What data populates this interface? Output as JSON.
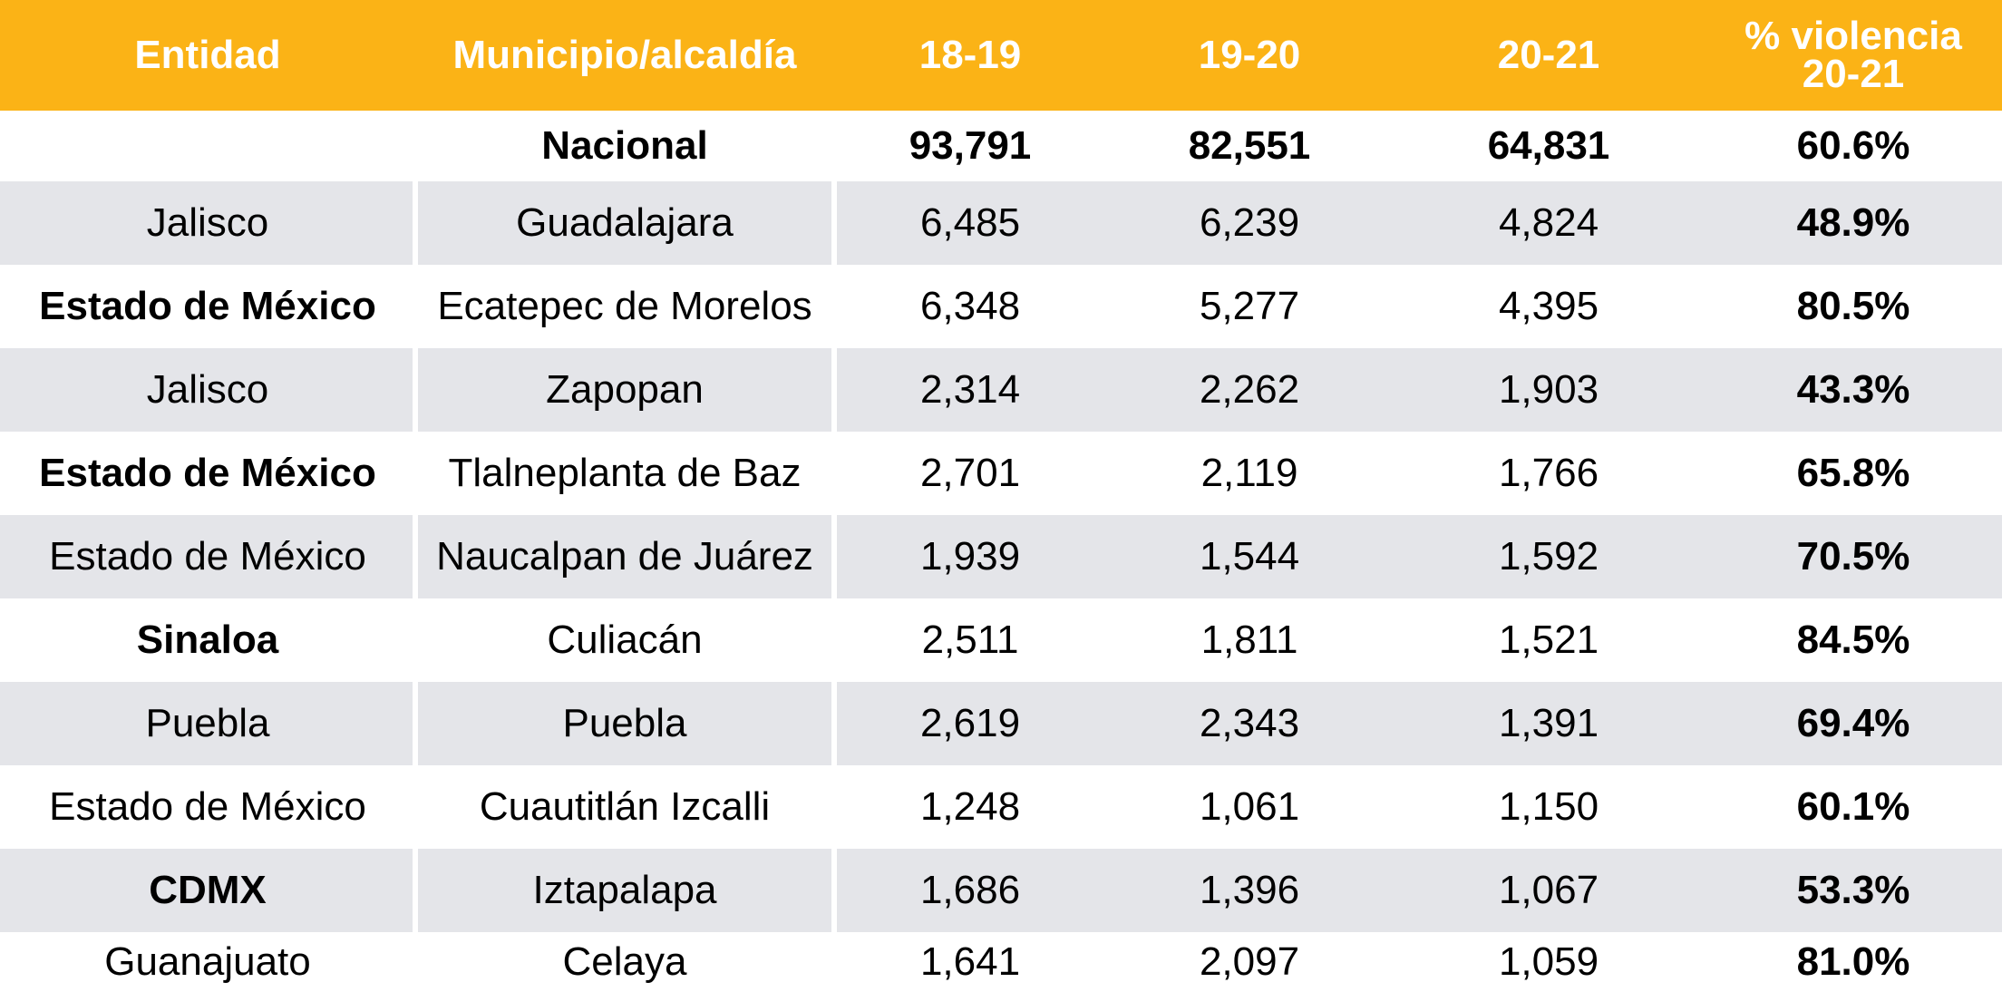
{
  "header": {
    "entidad": "Entidad",
    "municipio": "Municipio/alcaldía",
    "y1": "18-19",
    "y2": "19-20",
    "y3": "20-21",
    "pct_line1": "% violencia",
    "pct_line2": "20-21"
  },
  "colors": {
    "header_bg": "#FBB316",
    "row_shade": "#E4E5E9"
  },
  "rows": [
    {
      "entidad": "",
      "municipio": "Nacional",
      "y1": "93,791",
      "y2": "82,551",
      "y3": "64,831",
      "pct": "60.6%",
      "entidad_bold": false,
      "all_bold": true
    },
    {
      "entidad": "Jalisco",
      "municipio": "Guadalajara",
      "y1": "6,485",
      "y2": "6,239",
      "y3": "4,824",
      "pct": "48.9%",
      "entidad_bold": false
    },
    {
      "entidad": "Estado de México",
      "municipio": "Ecatepec de Morelos",
      "y1": "6,348",
      "y2": "5,277",
      "y3": "4,395",
      "pct": "80.5%",
      "entidad_bold": true
    },
    {
      "entidad": "Jalisco",
      "municipio": "Zapopan",
      "y1": "2,314",
      "y2": "2,262",
      "y3": "1,903",
      "pct": "43.3%",
      "entidad_bold": false
    },
    {
      "entidad": "Estado de México",
      "municipio": "Tlalneplanta de Baz",
      "y1": "2,701",
      "y2": "2,119",
      "y3": "1,766",
      "pct": "65.8%",
      "entidad_bold": true
    },
    {
      "entidad": "Estado de México",
      "municipio": "Naucalpan de Juárez",
      "y1": "1,939",
      "y2": "1,544",
      "y3": "1,592",
      "pct": "70.5%",
      "entidad_bold": false
    },
    {
      "entidad": "Sinaloa",
      "municipio": "Culiacán",
      "y1": "2,511",
      "y2": "1,811",
      "y3": "1,521",
      "pct": "84.5%",
      "entidad_bold": true
    },
    {
      "entidad": "Puebla",
      "municipio": "Puebla",
      "y1": "2,619",
      "y2": "2,343",
      "y3": "1,391",
      "pct": "69.4%",
      "entidad_bold": false
    },
    {
      "entidad": "Estado de México",
      "municipio": "Cuautitlán Izcalli",
      "y1": "1,248",
      "y2": "1,061",
      "y3": "1,150",
      "pct": "60.1%",
      "entidad_bold": false
    },
    {
      "entidad": "CDMX",
      "municipio": "Iztapalapa",
      "y1": "1,686",
      "y2": "1,396",
      "y3": "1,067",
      "pct": "53.3%",
      "entidad_bold": true
    },
    {
      "entidad": "Guanajuato",
      "municipio": "Celaya",
      "y1": "1,641",
      "y2": "2,097",
      "y3": "1,059",
      "pct": "81.0%",
      "entidad_bold": false
    }
  ]
}
